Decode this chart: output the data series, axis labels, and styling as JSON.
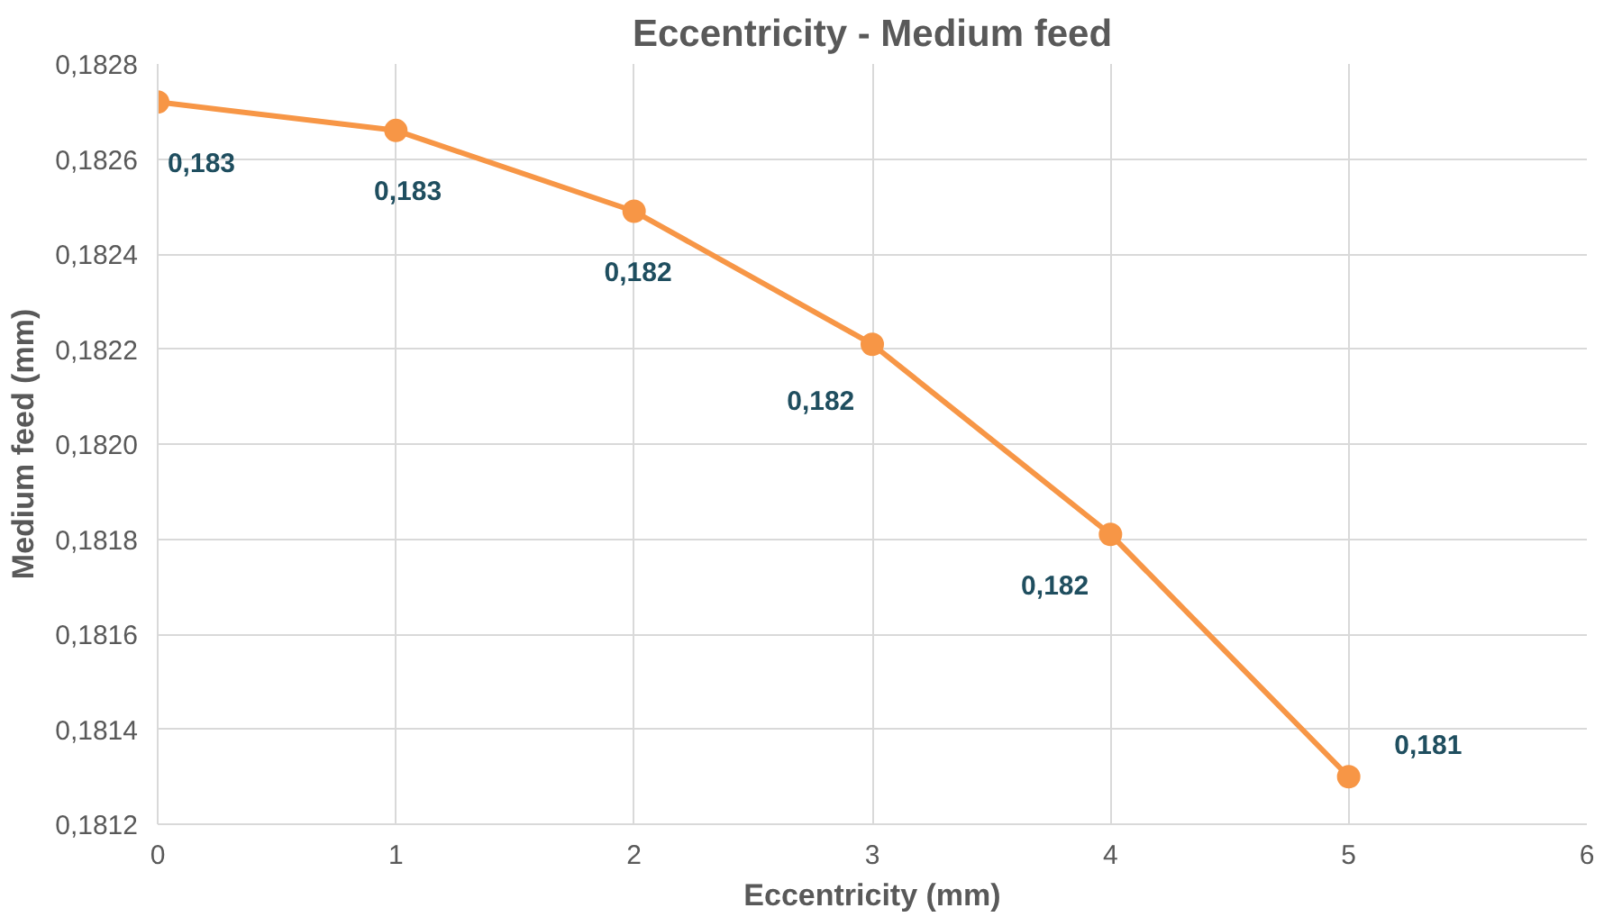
{
  "chart_data": {
    "type": "line",
    "title": "Eccentricity - Medium feed",
    "xlabel": "Eccentricity (mm)",
    "ylabel": "Medium feed (mm)",
    "x": [
      0,
      1,
      2,
      3,
      4,
      5
    ],
    "series": [
      {
        "color": "#f79646",
        "values": [
          0.18272,
          0.18266,
          0.18249,
          0.18221,
          0.18181,
          0.1813
        ],
        "value_labels": [
          "0,183",
          "0,183",
          "0,182",
          "0,182",
          "0,182",
          "0,181"
        ]
      }
    ],
    "xlim": [
      0,
      6
    ],
    "xticks": [
      0,
      1,
      2,
      3,
      4,
      5,
      6
    ],
    "ylim": [
      0.1812,
      0.1828
    ],
    "yticks": [
      {
        "value": 0.1812,
        "label": "0,1812"
      },
      {
        "value": 0.1814,
        "label": "0,1814"
      },
      {
        "value": 0.1816,
        "label": "0,1816"
      },
      {
        "value": 0.1818,
        "label": "0,1818"
      },
      {
        "value": 0.182,
        "label": "0,1820"
      },
      {
        "value": 0.1822,
        "label": "0,1822"
      },
      {
        "value": 0.1824,
        "label": "0,1824"
      },
      {
        "value": 0.1826,
        "label": "0,1826"
      },
      {
        "value": 0.1828,
        "label": "0,1828"
      }
    ],
    "grid": true,
    "marker": "circle",
    "line_style": "solid"
  }
}
